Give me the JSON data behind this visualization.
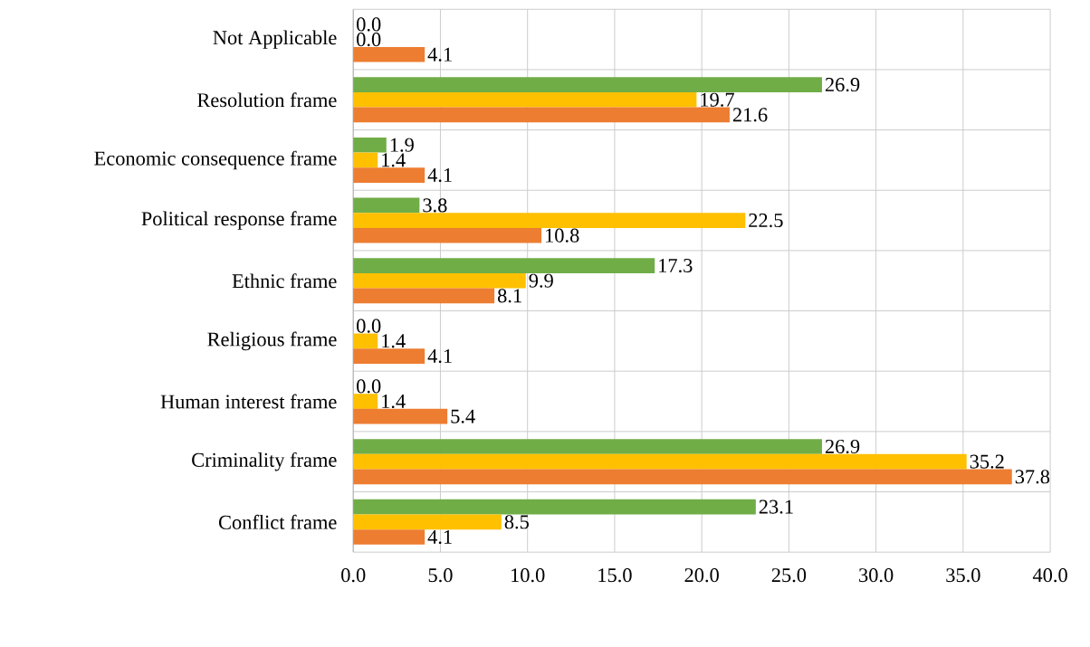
{
  "chart_data": {
    "type": "bar",
    "orientation": "horizontal",
    "categories": [
      "Not Applicable",
      "Resolution frame",
      "Economic consequence frame",
      "Political response frame",
      "Ethnic frame",
      "Religious frame",
      "Human interest frame",
      "Criminality frame",
      "Conflict frame"
    ],
    "series": [
      {
        "color": "#70ad47",
        "values": [
          0.0,
          26.9,
          1.9,
          3.8,
          17.3,
          0.0,
          0.0,
          26.9,
          23.1
        ],
        "value_labels": [
          "0.0",
          "26.9",
          "1.9",
          "3.8",
          "17.3",
          "0.0",
          "0.0",
          "26.9",
          "23.1"
        ]
      },
      {
        "color": "#ffc000",
        "values": [
          0.0,
          19.7,
          1.4,
          22.5,
          9.9,
          1.4,
          1.4,
          35.2,
          8.5
        ],
        "value_labels": [
          "0.0",
          "19.7",
          "1.4",
          "22.5",
          "9.9",
          "1.4",
          "1.4",
          "35.2",
          "8.5"
        ]
      },
      {
        "color": "#ed7d31",
        "values": [
          4.1,
          21.6,
          4.1,
          10.8,
          8.1,
          4.1,
          5.4,
          37.8,
          4.1
        ],
        "value_labels": [
          "4.1",
          "21.6",
          "4.1",
          "10.8",
          "8.1",
          "4.1",
          "5.4",
          "37.8",
          "4.1"
        ]
      }
    ],
    "xlim": [
      0,
      40
    ],
    "xticks": [
      {
        "value": 0,
        "label": "0.0"
      },
      {
        "value": 5,
        "label": "5.0"
      },
      {
        "value": 10,
        "label": "10.0"
      },
      {
        "value": 15,
        "label": "15.0"
      },
      {
        "value": 20,
        "label": "20.0"
      },
      {
        "value": 25,
        "label": "25.0"
      },
      {
        "value": 30,
        "label": "30.0"
      },
      {
        "value": 35,
        "label": "35.0"
      },
      {
        "value": 40,
        "label": "40.0"
      }
    ],
    "grid": "x"
  }
}
